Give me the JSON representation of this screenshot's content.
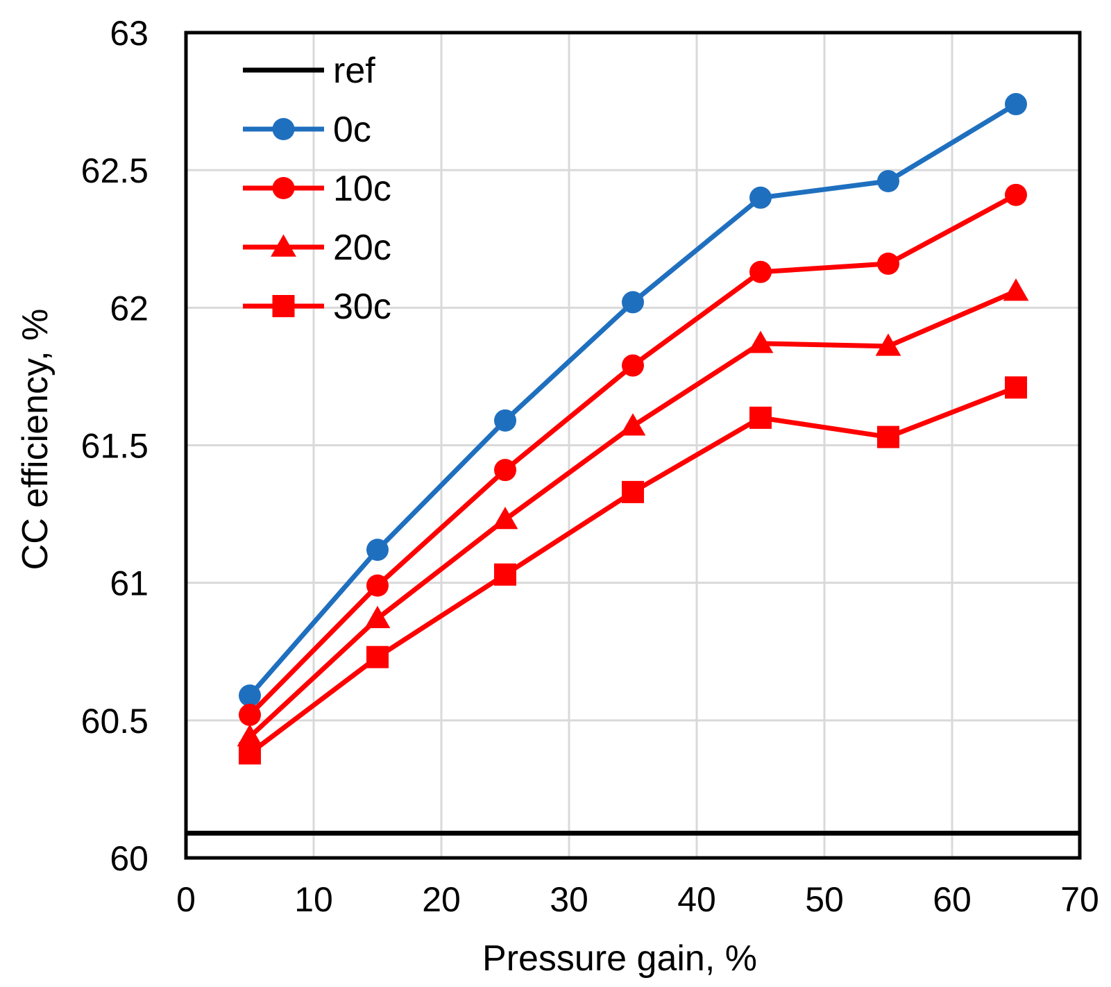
{
  "chart_data": {
    "type": "line",
    "title": "",
    "xlabel": "Pressure gain, %",
    "ylabel": "CC efficiency, %",
    "xlim": [
      0,
      70
    ],
    "ylim": [
      60,
      63
    ],
    "x_ticks": [
      0,
      10,
      20,
      30,
      40,
      50,
      60,
      70
    ],
    "y_ticks": [
      60,
      60.5,
      61,
      61.5,
      62,
      62.5,
      63
    ],
    "x_tick_labels": [
      "0",
      "10",
      "20",
      "30",
      "40",
      "50",
      "60",
      "70"
    ],
    "y_tick_labels": [
      "60",
      "60.5",
      "61",
      "61.5",
      "62",
      "62.5",
      "63"
    ],
    "grid": true,
    "legend_position": "top-left",
    "x": [
      5,
      15,
      25,
      35,
      45,
      55,
      65
    ],
    "series": [
      {
        "name": "ref",
        "color": "#000000",
        "marker": "none",
        "x": [
          0,
          70
        ],
        "values": [
          60.09,
          60.09
        ]
      },
      {
        "name": "0c",
        "color": "#1f6fbf",
        "marker": "circle",
        "values": [
          60.59,
          61.12,
          61.59,
          62.02,
          62.4,
          62.46,
          62.74
        ]
      },
      {
        "name": "10c",
        "color": "#ff0000",
        "marker": "circle",
        "values": [
          60.52,
          60.99,
          61.41,
          61.79,
          62.13,
          62.16,
          62.41
        ]
      },
      {
        "name": "20c",
        "color": "#ff0000",
        "marker": "triangle",
        "values": [
          60.44,
          60.87,
          61.23,
          61.57,
          61.87,
          61.86,
          62.06
        ]
      },
      {
        "name": "30c",
        "color": "#ff0000",
        "marker": "square",
        "values": [
          60.38,
          60.73,
          61.03,
          61.33,
          61.6,
          61.53,
          61.71
        ]
      }
    ]
  }
}
